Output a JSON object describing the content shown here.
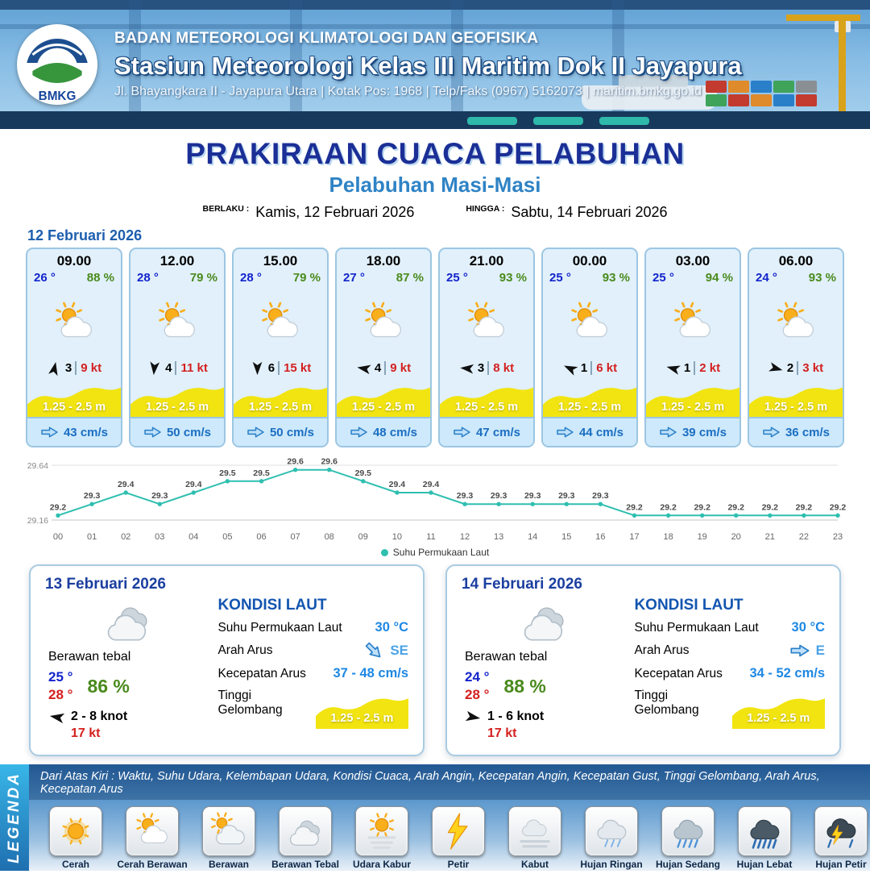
{
  "header": {
    "logo_label": "BMKG",
    "agency": "BADAN METEOROLOGI KLIMATOLOGI DAN GEOFISIKA",
    "station": "Stasiun Meteorologi Kelas III Maritim Dok II Jayapura",
    "address": "Jl. Bhayangkara II - Jayapura Utara | Kotak Pos: 1968 | Telp/Faks (0967) 5162073 | maritim.bmkg.go.id"
  },
  "title": {
    "main": "PRAKIRAAN CUACA PELABUHAN",
    "subtitle": "Pelabuhan Masi-Masi",
    "berlaku_label": "BERLAKU :",
    "berlaku_value": "Kamis, 12 Februari 2026",
    "hingga_label": "HINGGA :",
    "hingga_value": "Sabtu, 14 Februari 2026"
  },
  "forecast_date": "12 Februari 2026",
  "icons": {
    "wind_arrow": "wind-arrow",
    "flow_arrow": "flow-arrow"
  },
  "forecast_cards": [
    {
      "time": "09.00",
      "temp": "26 °",
      "humidity": "88 %",
      "icon": "sun-cloud",
      "wind_dir_deg": -78,
      "wind_val": "3",
      "wind_kt": "9 kt",
      "wave": "1.25 - 2.5 m",
      "current": "43 cm/s"
    },
    {
      "time": "12.00",
      "temp": "28 °",
      "humidity": "79 %",
      "icon": "sun-cloud",
      "wind_dir_deg": 95,
      "wind_val": "4",
      "wind_kt": "11 kt",
      "wave": "1.25 - 2.5 m",
      "current": "50 cm/s"
    },
    {
      "time": "15.00",
      "temp": "28 °",
      "humidity": "79 %",
      "icon": "sun-cloud",
      "wind_dir_deg": 90,
      "wind_val": "6",
      "wind_kt": "15 kt",
      "wave": "1.25 - 2.5 m",
      "current": "50 cm/s"
    },
    {
      "time": "18.00",
      "temp": "27 °",
      "humidity": "87 %",
      "icon": "sun-cloud",
      "wind_dir_deg": 190,
      "wind_val": "4",
      "wind_kt": "9 kt",
      "wave": "1.25 - 2.5 m",
      "current": "48 cm/s"
    },
    {
      "time": "21.00",
      "temp": "25 °",
      "humidity": "93 %",
      "icon": "sun-cloud",
      "wind_dir_deg": 185,
      "wind_val": "3",
      "wind_kt": "8 kt",
      "wave": "1.25 - 2.5 m",
      "current": "47 cm/s"
    },
    {
      "time": "00.00",
      "temp": "25 °",
      "humidity": "93 %",
      "icon": "sun-cloud",
      "wind_dir_deg": 205,
      "wind_val": "1",
      "wind_kt": "6 kt",
      "wave": "1.25 - 2.5 m",
      "current": "44 cm/s"
    },
    {
      "time": "03.00",
      "temp": "25 °",
      "humidity": "94 %",
      "icon": "sun-cloud",
      "wind_dir_deg": 195,
      "wind_val": "1",
      "wind_kt": "2 kt",
      "wave": "1.25 - 2.5 m",
      "current": "39 cm/s"
    },
    {
      "time": "06.00",
      "temp": "24 °",
      "humidity": "93 %",
      "icon": "sun-cloud",
      "wind_dir_deg": 15,
      "wind_val": "2",
      "wind_kt": "3 kt",
      "wave": "1.25 - 2.5 m",
      "current": "36 cm/s"
    }
  ],
  "chart_data": {
    "type": "line",
    "x": [
      "00",
      "01",
      "02",
      "03",
      "04",
      "05",
      "06",
      "07",
      "08",
      "09",
      "10",
      "11",
      "12",
      "13",
      "14",
      "15",
      "16",
      "17",
      "18",
      "19",
      "20",
      "21",
      "22",
      "23"
    ],
    "values": [
      29.2,
      29.3,
      29.4,
      29.3,
      29.4,
      29.5,
      29.5,
      29.6,
      29.6,
      29.5,
      29.4,
      29.4,
      29.3,
      29.3,
      29.3,
      29.3,
      29.3,
      29.2,
      29.2,
      29.2,
      29.2,
      29.2,
      29.2,
      29.2
    ],
    "ylim": [
      29.16,
      29.64
    ],
    "legend": [
      "Suhu Permukaan Laut"
    ],
    "legend_position": "bottom",
    "grid": false,
    "line_color": "#2fbfb0",
    "title": "",
    "xlabel": "",
    "ylabel": ""
  },
  "day_cards": [
    {
      "date": "13 Februari 2026",
      "icon": "cloud-thick",
      "condition": "Berawan tebal",
      "temp_min": "25 °",
      "temp_max": "28 °",
      "humidity": "86 %",
      "wind_dir_deg": 190,
      "wind_range": "2  - 8 knot",
      "gust": "17 kt",
      "sea": {
        "title": "KONDISI LAUT",
        "sst_label": "Suhu Permukaan Laut",
        "sst_value": "30 °C",
        "current_dir_label": "Arah Arus",
        "current_dir": "SE",
        "current_dir_deg": 45,
        "current_speed_label": "Kecepatan Arus",
        "current_speed": "37 - 48 cm/s",
        "wave_label": "Tinggi Gelombang",
        "wave_value": "1.25 - 2.5 m"
      }
    },
    {
      "date": "14 Februari 2026",
      "icon": "cloud-thick",
      "condition": "Berawan tebal",
      "temp_min": "24 °",
      "temp_max": "28 °",
      "humidity": "88 %",
      "wind_dir_deg": 10,
      "wind_range": "1  - 6 knot",
      "gust": "17 kt",
      "sea": {
        "title": "KONDISI LAUT",
        "sst_label": "Suhu Permukaan Laut",
        "sst_value": "30 °C",
        "current_dir_label": "Arah Arus",
        "current_dir": "E",
        "current_dir_deg": 0,
        "current_speed_label": "Kecepatan Arus",
        "current_speed": "34  - 52 cm/s",
        "wave_label": "Tinggi Gelombang",
        "wave_value": "1.25 - 2.5 m"
      }
    }
  ],
  "legend": {
    "title": "LEGENDA",
    "description": "Dari Atas Kiri : Waktu, Suhu Udara, Kelembapan Udara, Kondisi Cuaca, Arah Angin, Kecepatan Angin, Kecepatan Gust, Tinggi Gelombang, Arah Arus, Kecepatan Arus",
    "items": [
      {
        "label": "Cerah",
        "icon": "sun"
      },
      {
        "label": "Cerah Berawan",
        "icon": "sun-cloud"
      },
      {
        "label": "Berawan",
        "icon": "cloud-sun"
      },
      {
        "label": "Berawan Tebal",
        "icon": "cloud-thick"
      },
      {
        "label": "Udara Kabur",
        "icon": "haze"
      },
      {
        "label": "Petir",
        "icon": "lightning"
      },
      {
        "label": "Kabut",
        "icon": "fog"
      },
      {
        "label": "Hujan Ringan",
        "icon": "rain-light"
      },
      {
        "label": "Hujan Sedang",
        "icon": "rain-medium"
      },
      {
        "label": "Hujan Lebat",
        "icon": "rain-heavy"
      },
      {
        "label": "Hujan Petir",
        "icon": "rain-lightning"
      }
    ]
  }
}
